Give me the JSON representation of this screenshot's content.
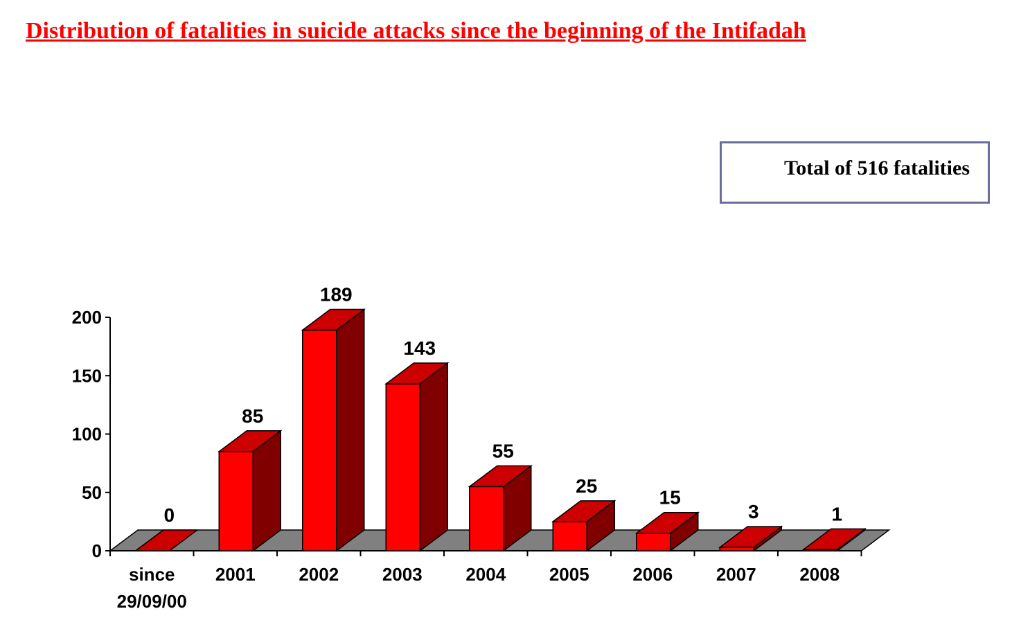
{
  "title": "Distribution of fatalities in suicide attacks since the beginning of the Intifadah",
  "total_label": "Total of 516 fatalities",
  "colors": {
    "title": "#ff0000",
    "bar_front": "#ff0000",
    "bar_top": "#cc0000",
    "bar_side": "#800000",
    "floor": "#808080",
    "box_border": "#6c6c9c"
  },
  "chart_data": {
    "type": "bar",
    "title": "Distribution of fatalities in suicide attacks since the beginning of the Intifadah",
    "xlabel": "",
    "ylabel": "",
    "categories": [
      "since\n29/09/00",
      "2001",
      "2002",
      "2003",
      "2004",
      "2005",
      "2006",
      "2007",
      "2008"
    ],
    "values": [
      0,
      85,
      189,
      143,
      55,
      25,
      15,
      3,
      1
    ],
    "ylim": [
      0,
      200
    ],
    "yticks": [
      0,
      50,
      100,
      150,
      200
    ],
    "data_labels": true,
    "three_d": true,
    "grid": false,
    "legend": "none",
    "annotation": "Total of 516 fatalities"
  }
}
